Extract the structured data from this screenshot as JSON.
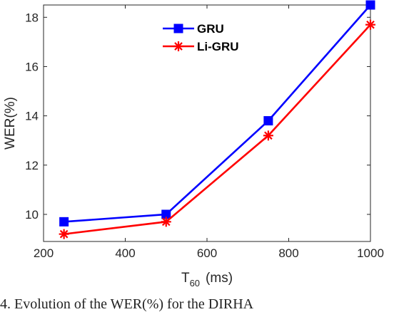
{
  "chart_data": {
    "type": "line",
    "xlabel_main": "T",
    "xlabel_sub": "60",
    "xlabel_unit": "(ms)",
    "ylabel": "WER(%)",
    "xlim": [
      200,
      1000
    ],
    "ylim": [
      8.9,
      18.5
    ],
    "xticks": [
      200,
      400,
      600,
      800,
      1000
    ],
    "yticks": [
      10,
      12,
      14,
      16,
      18
    ],
    "grid": false,
    "legend_position": "top-center",
    "series": [
      {
        "name": "GRU",
        "color": "#0000ff",
        "marker": "square",
        "x": [
          250,
          500,
          750,
          1000
        ],
        "y": [
          9.7,
          10.0,
          13.8,
          18.5
        ]
      },
      {
        "name": "Li-GRU",
        "color": "#ff0000",
        "marker": "asterisk",
        "x": [
          250,
          500,
          750,
          1000
        ],
        "y": [
          9.2,
          9.7,
          13.2,
          17.7
        ]
      }
    ]
  },
  "caption": "4.  Evolution  of  the  WER(%)  for  the  DIRHA"
}
